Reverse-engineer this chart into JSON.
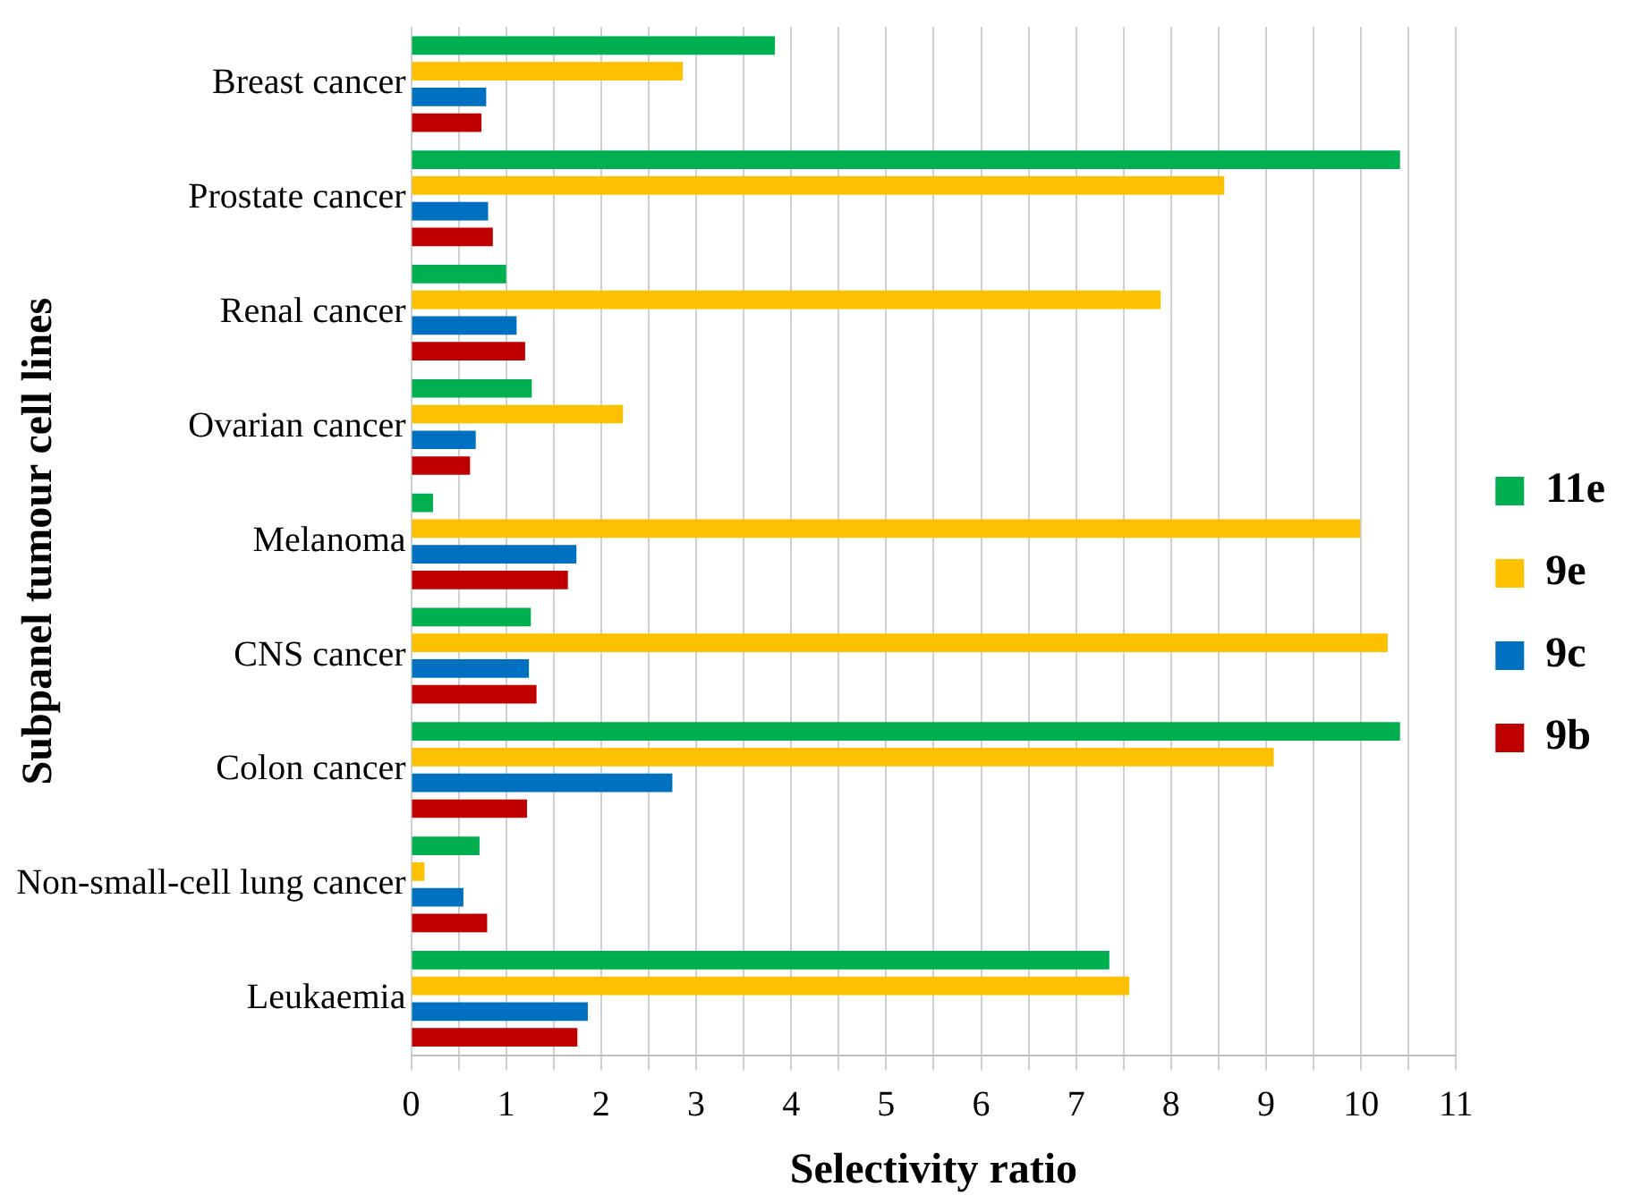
{
  "chart_data": {
    "type": "bar",
    "orientation": "horizontal",
    "xlabel": "Selectivity ratio",
    "ylabel": "Subpanel tumour cell lines",
    "categories": [
      "Breast cancer",
      "Prostate cancer",
      "Renal cancer",
      "Ovarian cancer",
      "Melanoma",
      "CNS cancer",
      "Colon cancer",
      "Non-small-cell lung cancer",
      "Leukaemia"
    ],
    "series": [
      {
        "name": "11e",
        "color": "#00b050",
        "values": [
          3.83,
          10.41,
          1.0,
          1.27,
          0.23,
          1.26,
          10.41,
          0.72,
          7.35
        ]
      },
      {
        "name": "9e",
        "color": "#ffc000",
        "values": [
          2.86,
          8.56,
          7.89,
          2.23,
          9.99,
          10.28,
          9.08,
          0.14,
          7.56
        ]
      },
      {
        "name": "9c",
        "color": "#0070c0",
        "values": [
          0.79,
          0.81,
          1.11,
          0.68,
          1.74,
          1.24,
          2.75,
          0.55,
          1.86
        ]
      },
      {
        "name": "9b",
        "color": "#c00000",
        "values": [
          0.74,
          0.86,
          1.2,
          0.62,
          1.65,
          1.32,
          1.22,
          0.8,
          1.75
        ]
      }
    ],
    "xlim": [
      0,
      11
    ],
    "xticks": [
      0,
      {
        "value": 0.5,
        "label": null
      },
      1,
      {
        "value": 1.5,
        "label": null
      },
      2,
      {
        "value": 2.5,
        "label": null
      },
      3,
      {
        "value": 3.5,
        "label": null
      },
      4,
      {
        "value": 4.5,
        "label": null
      },
      5,
      {
        "value": 5.5,
        "label": null
      },
      6,
      {
        "value": 6.5,
        "label": null
      },
      7,
      {
        "value": 7.5,
        "label": null
      },
      8,
      {
        "value": 8.5,
        "label": null
      },
      9,
      {
        "value": 9.5,
        "label": null
      },
      10,
      {
        "value": 10.5,
        "label": null
      },
      11
    ],
    "grid": "x",
    "legend": "right"
  }
}
